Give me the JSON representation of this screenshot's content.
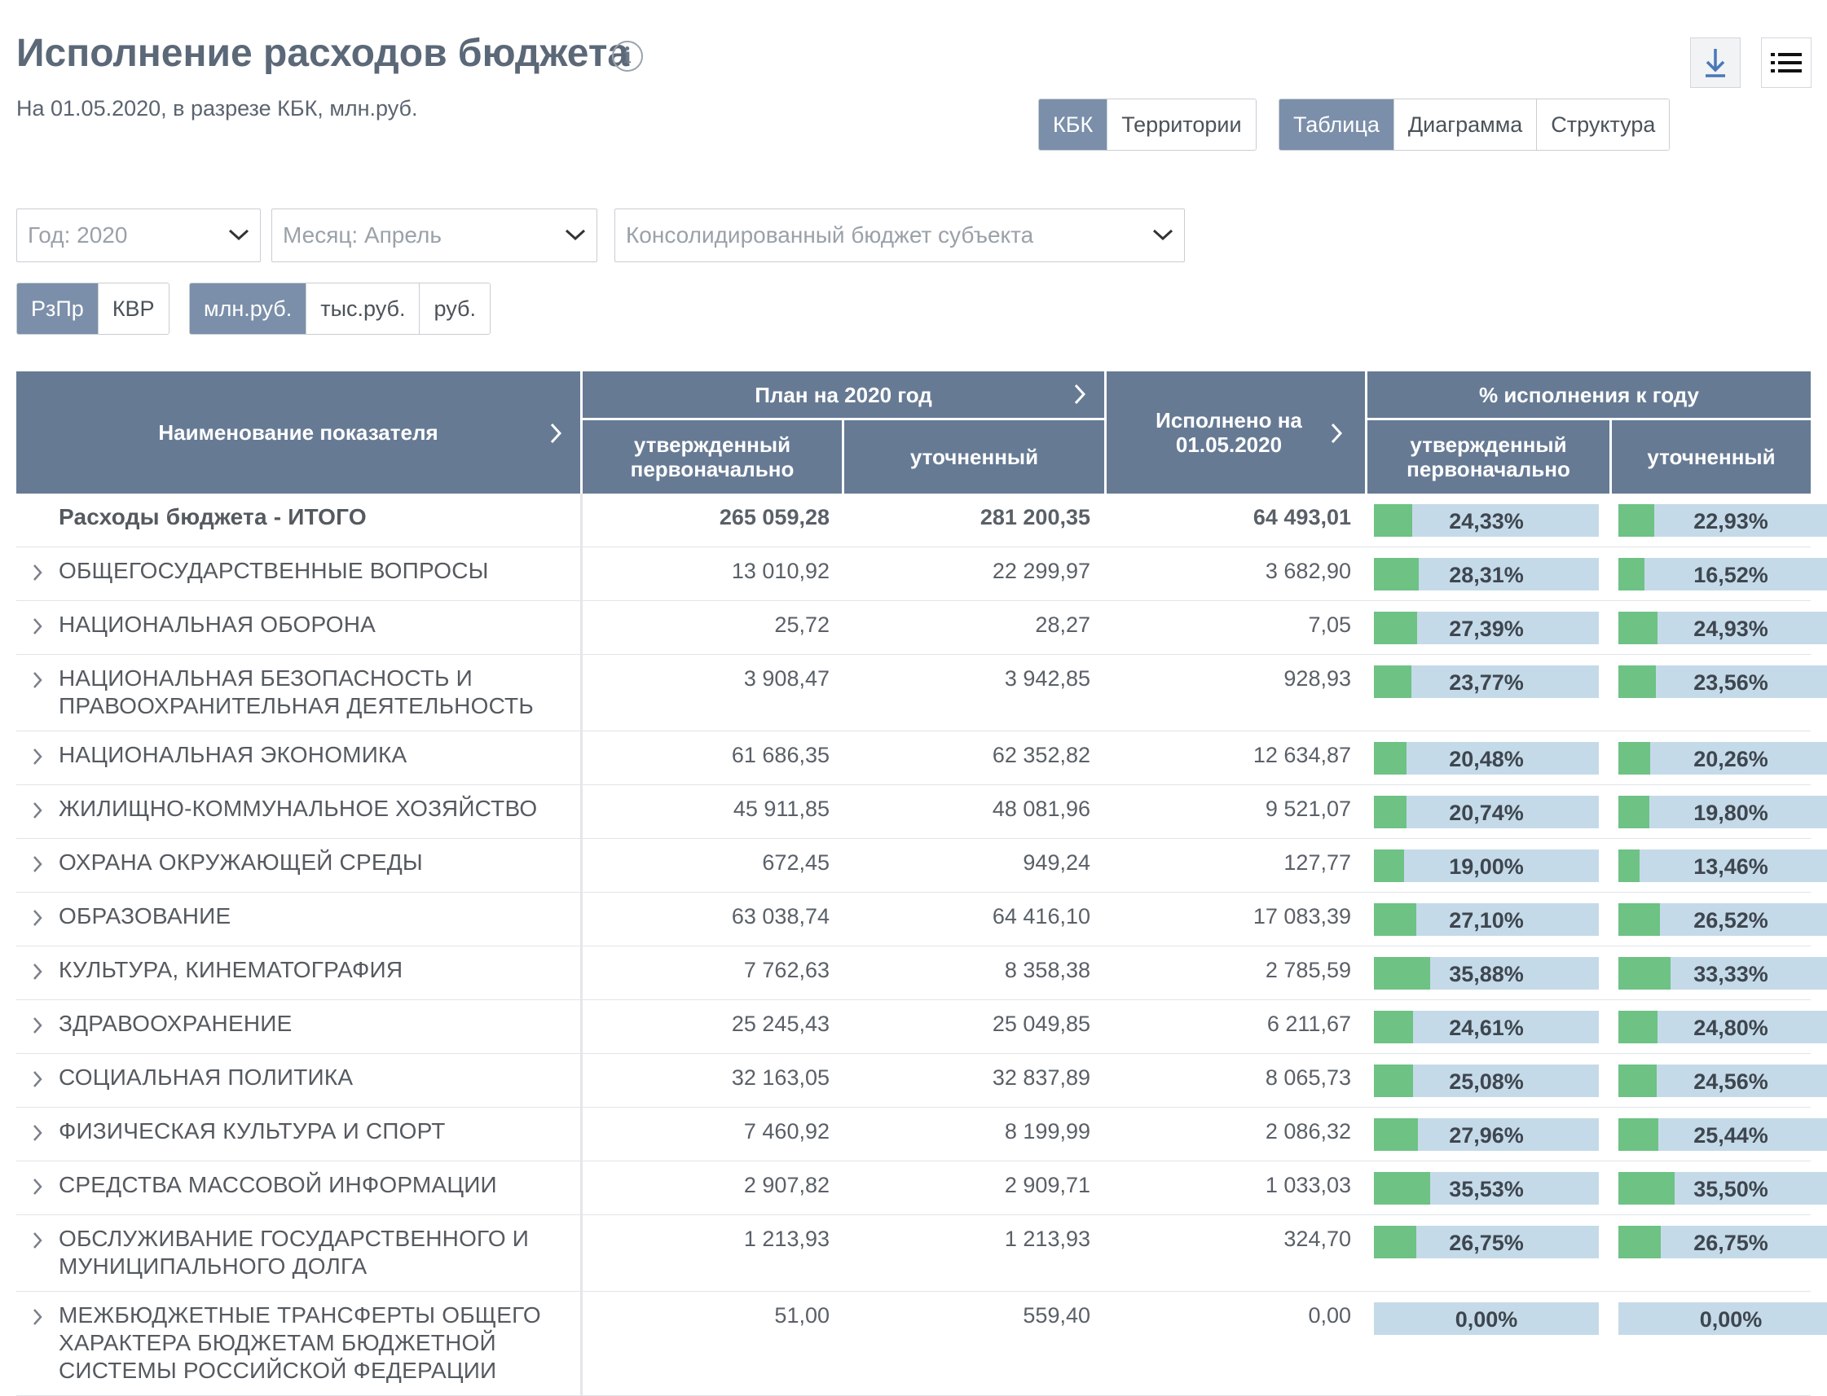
{
  "header": {
    "title": "Исполнение расходов бюджета",
    "info_icon": "i",
    "subtitle": "На 01.05.2020, в разрезе КБК, млн.руб."
  },
  "toolbar": {
    "view_group1": [
      "КБК",
      "Территории"
    ],
    "view_group1_active": "КБК",
    "view_group2": [
      "Таблица",
      "Диаграмма",
      "Структура"
    ],
    "view_group2_active": "Таблица",
    "download_icon": "download-icon",
    "list_icon": "list-icon"
  },
  "filters": {
    "year": "Год: 2020",
    "month": "Месяц: Апрель",
    "budget": "Консолидированный бюджет субъекта",
    "classif": [
      "РзПр",
      "КВР"
    ],
    "classif_active": "РзПр",
    "units": [
      "млн.руб.",
      "тыс.руб.",
      "руб."
    ],
    "units_active": "млн.руб."
  },
  "colors": {
    "header_bg": "#667a94",
    "bar_fill": "#6dc284",
    "bar_bg": "#c5dae8",
    "active_btn": "#7b8faa"
  },
  "table": {
    "col_name": "Наименование показателя",
    "col_plan": "План на 2020 год",
    "col_plan_initial": "утвержденный первоначально",
    "col_plan_revised": "уточненный",
    "col_executed": "Исполнено на 01.05.2020",
    "col_pct": "% исполнения к году",
    "col_pct_initial": "утвержденный первоначально",
    "col_pct_revised": "уточненный",
    "rows": [
      {
        "name": "Расходы бюджета - ИТОГО",
        "plan_initial": "265 059,28",
        "plan_revised": "281 200,35",
        "executed": "64 493,01",
        "pct_initial": "24,33%",
        "pct_revised": "22,93%"
      },
      {
        "name": "ОБЩЕГОСУДАРСТВЕННЫЕ ВОПРОСЫ",
        "plan_initial": "13 010,92",
        "plan_revised": "22 299,97",
        "executed": "3 682,90",
        "pct_initial": "28,31%",
        "pct_revised": "16,52%"
      },
      {
        "name": "НАЦИОНАЛЬНАЯ ОБОРОНА",
        "plan_initial": "25,72",
        "plan_revised": "28,27",
        "executed": "7,05",
        "pct_initial": "27,39%",
        "pct_revised": "24,93%"
      },
      {
        "name": "НАЦИОНАЛЬНАЯ БЕЗОПАСНОСТЬ И ПРАВООХРАНИТЕЛЬНАЯ ДЕЯТЕЛЬНОСТЬ",
        "plan_initial": "3 908,47",
        "plan_revised": "3 942,85",
        "executed": "928,93",
        "pct_initial": "23,77%",
        "pct_revised": "23,56%"
      },
      {
        "name": "НАЦИОНАЛЬНАЯ ЭКОНОМИКА",
        "plan_initial": "61 686,35",
        "plan_revised": "62 352,82",
        "executed": "12 634,87",
        "pct_initial": "20,48%",
        "pct_revised": "20,26%"
      },
      {
        "name": "ЖИЛИЩНО-КОММУНАЛЬНОЕ ХОЗЯЙСТВО",
        "plan_initial": "45 911,85",
        "plan_revised": "48 081,96",
        "executed": "9 521,07",
        "pct_initial": "20,74%",
        "pct_revised": "19,80%"
      },
      {
        "name": "ОХРАНА ОКРУЖАЮЩЕЙ СРЕДЫ",
        "plan_initial": "672,45",
        "plan_revised": "949,24",
        "executed": "127,77",
        "pct_initial": "19,00%",
        "pct_revised": "13,46%"
      },
      {
        "name": "ОБРАЗОВАНИЕ",
        "plan_initial": "63 038,74",
        "plan_revised": "64 416,10",
        "executed": "17 083,39",
        "pct_initial": "27,10%",
        "pct_revised": "26,52%"
      },
      {
        "name": "КУЛЬТУРА, КИНЕМАТОГРАФИЯ",
        "plan_initial": "7 762,63",
        "plan_revised": "8 358,38",
        "executed": "2 785,59",
        "pct_initial": "35,88%",
        "pct_revised": "33,33%"
      },
      {
        "name": "ЗДРАВООХРАНЕНИЕ",
        "plan_initial": "25 245,43",
        "plan_revised": "25 049,85",
        "executed": "6 211,67",
        "pct_initial": "24,61%",
        "pct_revised": "24,80%"
      },
      {
        "name": "СОЦИАЛЬНАЯ ПОЛИТИКА",
        "plan_initial": "32 163,05",
        "plan_revised": "32 837,89",
        "executed": "8 065,73",
        "pct_initial": "25,08%",
        "pct_revised": "24,56%"
      },
      {
        "name": "ФИЗИЧЕСКАЯ КУЛЬТУРА И СПОРТ",
        "plan_initial": "7 460,92",
        "plan_revised": "8 199,99",
        "executed": "2 086,32",
        "pct_initial": "27,96%",
        "pct_revised": "25,44%"
      },
      {
        "name": "СРЕДСТВА МАССОВОЙ ИНФОРМАЦИИ",
        "plan_initial": "2 907,82",
        "plan_revised": "2 909,71",
        "executed": "1 033,03",
        "pct_initial": "35,53%",
        "pct_revised": "35,50%"
      },
      {
        "name": "ОБСЛУЖИВАНИЕ ГОСУДАРСТВЕННОГО И МУНИЦИПАЛЬНОГО ДОЛГА",
        "plan_initial": "1 213,93",
        "plan_revised": "1 213,93",
        "executed": "324,70",
        "pct_initial": "26,75%",
        "pct_revised": "26,75%"
      },
      {
        "name": "МЕЖБЮДЖЕТНЫЕ ТРАНСФЕРТЫ ОБЩЕГО ХАРАКТЕРА БЮДЖЕТАМ БЮДЖЕТНОЙ СИСТЕМЫ РОССИЙСКОЙ ФЕДЕРАЦИИ",
        "plan_initial": "51,00",
        "plan_revised": "559,40",
        "executed": "0,00",
        "pct_initial": "0,00%",
        "pct_revised": "0,00%"
      }
    ]
  }
}
